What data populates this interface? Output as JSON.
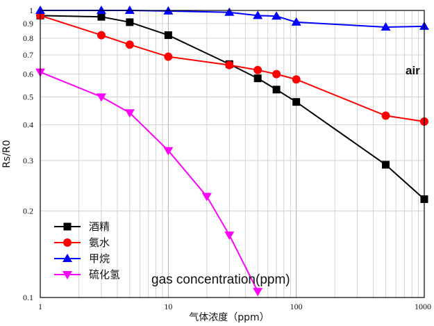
{
  "chart_data": {
    "type": "line",
    "xscale": "log",
    "yscale": "log",
    "xlim": [
      1,
      1000
    ],
    "ylim": [
      0.1,
      1
    ],
    "ylabel": "Rs/R0",
    "xlabel": "气体浓度（ppm）",
    "grid": true,
    "legend_position": "bottom-left",
    "x_ticks": [
      "1",
      "10",
      "100",
      "1000"
    ],
    "y_ticks": [
      {
        "v": 0.1,
        "label": "0.1"
      },
      {
        "v": 0.2,
        "label": "0.2"
      },
      {
        "v": 0.3,
        "label": "0.3"
      },
      {
        "v": 0.4,
        "label": "0.4"
      },
      {
        "v": 0.5,
        "label": "0.5"
      },
      {
        "v": 0.6,
        "label": "0.6"
      },
      {
        "v": 0.7,
        "label": "0.7"
      },
      {
        "v": 0.8,
        "label": "0.8"
      },
      {
        "v": 0.9,
        "label": "0.9"
      },
      {
        "v": 1.0,
        "label": "1"
      }
    ],
    "series": [
      {
        "name": "酒精",
        "color": "#000000",
        "marker": "square",
        "points": [
          [
            1,
            0.96
          ],
          [
            3,
            0.95
          ],
          [
            5,
            0.91
          ],
          [
            10,
            0.82
          ],
          [
            30,
            0.65
          ],
          [
            50,
            0.58
          ],
          [
            70,
            0.53
          ],
          [
            100,
            0.48
          ],
          [
            500,
            0.29
          ],
          [
            1000,
            0.22
          ]
        ]
      },
      {
        "name": "氨水",
        "color": "#ff0000",
        "marker": "circle",
        "points": [
          [
            1,
            0.96
          ],
          [
            3,
            0.82
          ],
          [
            5,
            0.76
          ],
          [
            10,
            0.69
          ],
          [
            30,
            0.645
          ],
          [
            50,
            0.62
          ],
          [
            70,
            0.6
          ],
          [
            100,
            0.575
          ],
          [
            500,
            0.43
          ],
          [
            1000,
            0.41
          ]
        ]
      },
      {
        "name": "甲烷",
        "color": "#0000ff",
        "marker": "triangle-up",
        "points": [
          [
            1,
            1.0
          ],
          [
            3,
            1.0
          ],
          [
            5,
            1.0
          ],
          [
            10,
            0.995
          ],
          [
            30,
            0.985
          ],
          [
            50,
            0.96
          ],
          [
            70,
            0.955
          ],
          [
            100,
            0.91
          ],
          [
            500,
            0.875
          ],
          [
            1000,
            0.88
          ]
        ]
      },
      {
        "name": "硫化氢",
        "color": "#ff00ff",
        "marker": "triangle-down",
        "points": [
          [
            1,
            0.61
          ],
          [
            3,
            0.5
          ],
          [
            5,
            0.44
          ],
          [
            10,
            0.325
          ],
          [
            20,
            0.225
          ],
          [
            30,
            0.165
          ],
          [
            50,
            0.105
          ]
        ]
      }
    ]
  },
  "annotations": {
    "air_label": "air",
    "gas_label": "gas concentration(ppm)"
  }
}
